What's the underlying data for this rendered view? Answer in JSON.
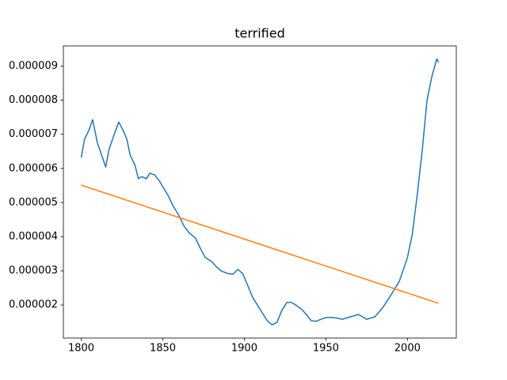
{
  "chart_data": {
    "type": "line",
    "title": "terrified",
    "xlim": [
      1789.05,
      2029.95
    ],
    "xticks": [
      1800,
      1850,
      1900,
      1950,
      2000
    ],
    "ylim": [
      1.03e-06,
      9.59e-06
    ],
    "yticks": [
      2e-06,
      3e-06,
      4e-06,
      5e-06,
      6e-06,
      7e-06,
      8e-06,
      9e-06
    ],
    "series": [
      {
        "color": "#1f77b4",
        "x": [
          1800,
          1802,
          1805,
          1807,
          1810,
          1812,
          1815,
          1817,
          1820,
          1823,
          1826,
          1828,
          1830,
          1833,
          1835,
          1837,
          1840,
          1842,
          1845,
          1848,
          1850,
          1853,
          1856,
          1860,
          1863,
          1866,
          1870,
          1873,
          1876,
          1880,
          1883,
          1886,
          1890,
          1893,
          1896,
          1899,
          1902,
          1905,
          1908,
          1911,
          1914,
          1917,
          1920,
          1923,
          1926,
          1929,
          1932,
          1935,
          1938,
          1941,
          1944,
          1947,
          1950,
          1955,
          1960,
          1965,
          1970,
          1975,
          1980,
          1985,
          1990,
          1995,
          2000,
          2003,
          2006,
          2009,
          2012,
          2015,
          2018,
          2019
        ],
        "values": [
          6.32e-06,
          6.85e-06,
          7.15e-06,
          7.43e-06,
          6.73e-06,
          6.46e-06,
          6.04e-06,
          6.55e-06,
          6.97e-06,
          7.36e-06,
          7.08e-06,
          6.85e-06,
          6.39e-06,
          6.09e-06,
          5.7e-06,
          5.76e-06,
          5.7e-06,
          5.86e-06,
          5.81e-06,
          5.63e-06,
          5.46e-06,
          5.23e-06,
          4.93e-06,
          4.61e-06,
          4.31e-06,
          4.12e-06,
          3.96e-06,
          3.66e-06,
          3.39e-06,
          3.27e-06,
          3.11e-06,
          2.99e-06,
          2.92e-06,
          2.9e-06,
          3.04e-06,
          2.92e-06,
          2.58e-06,
          2.23e-06,
          2e-06,
          1.77e-06,
          1.54e-06,
          1.42e-06,
          1.49e-06,
          1.84e-06,
          2.07e-06,
          2.07e-06,
          1.98e-06,
          1.88e-06,
          1.72e-06,
          1.54e-06,
          1.52e-06,
          1.58e-06,
          1.63e-06,
          1.63e-06,
          1.58e-06,
          1.65e-06,
          1.72e-06,
          1.58e-06,
          1.65e-06,
          1.93e-06,
          2.3e-06,
          2.69e-06,
          3.39e-06,
          4.08e-06,
          5.23e-06,
          6.5e-06,
          8e-06,
          8.7e-06,
          9.21e-06,
          9.11e-06
        ]
      },
      {
        "color": "#ff7f0e",
        "x": [
          1800,
          2019
        ],
        "values": [
          5.51e-06,
          2.05e-06
        ]
      }
    ]
  }
}
